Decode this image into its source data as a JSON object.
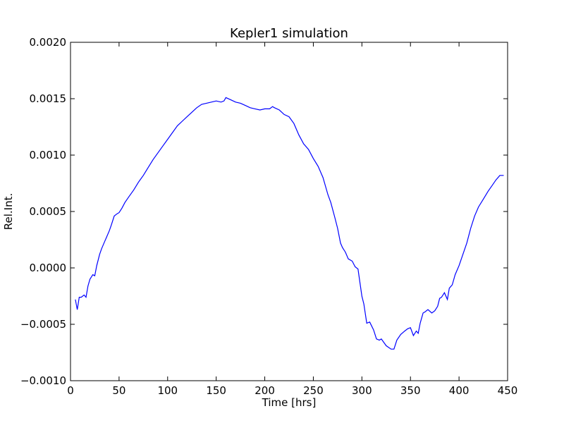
{
  "chart_data": {
    "type": "line",
    "title": "Kepler1 simulation",
    "xlabel": "Time [hrs]",
    "ylabel": "Rel.Int.",
    "xlim": [
      0,
      450
    ],
    "ylim": [
      -0.001,
      0.002
    ],
    "xticks": [
      0,
      50,
      100,
      150,
      200,
      250,
      300,
      350,
      400,
      450
    ],
    "xtick_labels": [
      "0",
      "50",
      "100",
      "150",
      "200",
      "250",
      "300",
      "350",
      "400",
      "450"
    ],
    "yticks": [
      -0.001,
      -0.0005,
      0.0,
      0.0005,
      0.001,
      0.0015,
      0.002
    ],
    "ytick_labels": [
      "−0.0010",
      "−0.0005",
      "0.0000",
      "0.0005",
      "0.0010",
      "0.0015",
      "0.0020"
    ],
    "grid": false,
    "line_color": "#0000ff",
    "series": [
      {
        "x": [
          5,
          7,
          9,
          11,
          14,
          16,
          18,
          20,
          23,
          25,
          27,
          30,
          32,
          35,
          37,
          40,
          42,
          45,
          48,
          50,
          53,
          56,
          60,
          65,
          70,
          75,
          80,
          85,
          90,
          95,
          100,
          105,
          110,
          115,
          120,
          125,
          130,
          135,
          140,
          145,
          150,
          155,
          158,
          160,
          165,
          170,
          175,
          180,
          185,
          190,
          195,
          200,
          205,
          208,
          210,
          215,
          220,
          225,
          230,
          235,
          240,
          245,
          250,
          255,
          260,
          265,
          268,
          272,
          275,
          278,
          280,
          283,
          286,
          290,
          293,
          296,
          300,
          302,
          305,
          308,
          312,
          315,
          318,
          320,
          325,
          330,
          333,
          336,
          340,
          344,
          347,
          350,
          353,
          356,
          358,
          360,
          363,
          365,
          368,
          372,
          375,
          378,
          380,
          382,
          385,
          388,
          390,
          393,
          396,
          400,
          404,
          408,
          412,
          416,
          420,
          425,
          430,
          434,
          438,
          442,
          446
        ],
        "y": [
          -0.00028,
          -0.00037,
          -0.00026,
          -0.00026,
          -0.00024,
          -0.00026,
          -0.00016,
          -0.0001,
          -6e-05,
          -7e-05,
          2e-05,
          0.00012,
          0.00017,
          0.00023,
          0.00027,
          0.00033,
          0.00038,
          0.00046,
          0.00048,
          0.00049,
          0.00053,
          0.00058,
          0.00063,
          0.00069,
          0.00076,
          0.00082,
          0.00089,
          0.00096,
          0.00102,
          0.00108,
          0.00114,
          0.0012,
          0.00126,
          0.0013,
          0.00134,
          0.00138,
          0.00142,
          0.00145,
          0.00146,
          0.00147,
          0.00148,
          0.00147,
          0.00148,
          0.00151,
          0.00149,
          0.00147,
          0.00146,
          0.00144,
          0.00142,
          0.00141,
          0.0014,
          0.00141,
          0.00141,
          0.00143,
          0.00142,
          0.0014,
          0.00136,
          0.00134,
          0.00128,
          0.00118,
          0.0011,
          0.00105,
          0.00097,
          0.0009,
          0.0008,
          0.00065,
          0.00058,
          0.00045,
          0.00035,
          0.00022,
          0.00018,
          0.00014,
          8e-05,
          6e-05,
          1e-05,
          -1e-05,
          -0.00025,
          -0.00032,
          -0.00049,
          -0.00048,
          -0.00055,
          -0.00063,
          -0.00064,
          -0.00063,
          -0.00069,
          -0.00072,
          -0.00072,
          -0.00064,
          -0.00059,
          -0.00056,
          -0.00054,
          -0.00053,
          -0.0006,
          -0.00056,
          -0.00058,
          -0.00049,
          -0.0004,
          -0.00039,
          -0.00037,
          -0.0004,
          -0.00038,
          -0.00034,
          -0.00027,
          -0.00026,
          -0.00022,
          -0.00028,
          -0.00018,
          -0.00015,
          -6e-05,
          2e-05,
          0.00012,
          0.00022,
          0.00035,
          0.00046,
          0.00054,
          0.00061,
          0.00068,
          0.00073,
          0.00078,
          0.00082,
          0.00082
        ]
      }
    ]
  }
}
